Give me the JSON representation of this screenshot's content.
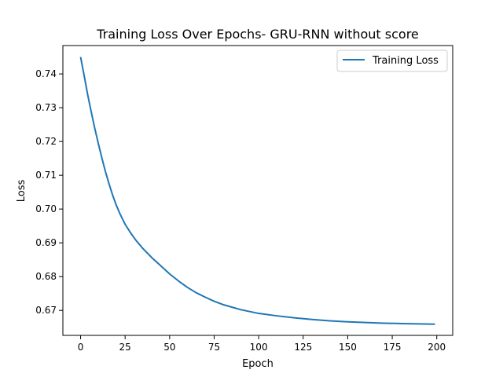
{
  "chart_data": {
    "type": "line",
    "title": "Training Loss Over Epochs- GRU-RNN without score",
    "xlabel": "Epoch",
    "ylabel": "Loss",
    "xlim": [
      -9.95,
      208.95
    ],
    "ylim": [
      0.6626,
      0.7484
    ],
    "xticks": [
      0,
      25,
      50,
      75,
      100,
      125,
      150,
      175,
      200
    ],
    "xtick_labels": [
      "0",
      "25",
      "50",
      "75",
      "100",
      "125",
      "150",
      "175",
      "200"
    ],
    "yticks": [
      0.67,
      0.68,
      0.69,
      0.7,
      0.71,
      0.72,
      0.73,
      0.74
    ],
    "ytick_labels": [
      "0.67",
      "0.68",
      "0.69",
      "0.70",
      "0.71",
      "0.72",
      "0.73",
      "0.74"
    ],
    "grid": false,
    "legend_position": "top-right",
    "series": [
      {
        "name": "Training Loss",
        "color": "#1f77b4",
        "x": [
          0,
          2,
          4,
          6,
          8,
          10,
          12,
          14,
          16,
          18,
          20,
          22,
          25,
          28,
          31,
          35,
          40,
          45,
          50,
          55,
          60,
          65,
          70,
          75,
          80,
          90,
          100,
          110,
          120,
          130,
          140,
          150,
          160,
          170,
          180,
          190,
          199
        ],
        "y": [
          0.745,
          0.7395,
          0.7338,
          0.7287,
          0.7238,
          0.7193,
          0.715,
          0.711,
          0.7074,
          0.7041,
          0.7012,
          0.6987,
          0.6955,
          0.693,
          0.6908,
          0.6883,
          0.6856,
          0.6832,
          0.6808,
          0.6787,
          0.6768,
          0.6752,
          0.6739,
          0.6727,
          0.6717,
          0.6702,
          0.6691,
          0.6684,
          0.6678,
          0.6673,
          0.6669,
          0.6666,
          0.6664,
          0.6662,
          0.6661,
          0.666,
          0.6659
        ]
      }
    ]
  }
}
